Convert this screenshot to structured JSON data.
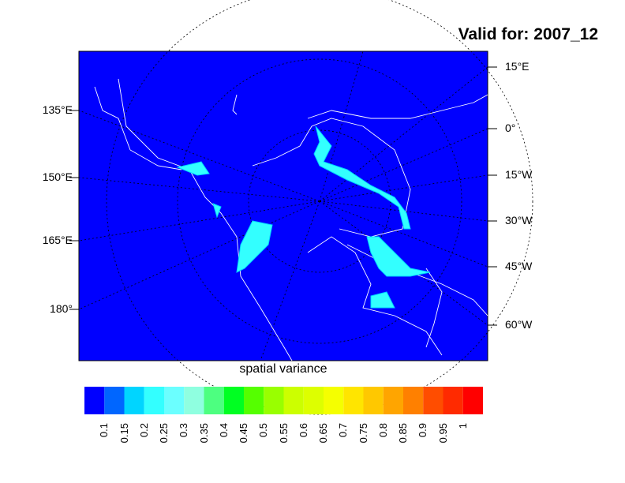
{
  "title": "Valid for: 2007_12",
  "variable_label": "spatial variance",
  "left_lon_labels": [
    "135°E",
    "150°E",
    "165°E",
    "180°"
  ],
  "right_lon_labels": [
    "15°E",
    "0°",
    "15°W",
    "30°W",
    "45°W",
    "60°W"
  ],
  "colorbar": {
    "labels": [
      "0.1",
      "0.15",
      "0.2",
      "0.25",
      "0.3",
      "0.35",
      "0.4",
      "0.45",
      "0.5",
      "0.55",
      "0.6",
      "0.65",
      "0.7",
      "0.75",
      "0.8",
      "0.85",
      "0.9",
      "0.95",
      "1"
    ],
    "colors": [
      "#0000ff",
      "#0066ff",
      "#00d5ff",
      "#33ffff",
      "#6bffff",
      "#8fffe0",
      "#4dff80",
      "#00ff22",
      "#55ff00",
      "#99ff00",
      "#ccff00",
      "#ddff00",
      "#f5ff00",
      "#ffe500",
      "#ffc800",
      "#ffa500",
      "#ff8000",
      "#ff4d00",
      "#ff2a00",
      "#ff0000"
    ]
  },
  "colors": {
    "ocean_background": "#0000ff",
    "coastline": "#ffffff",
    "high_variance": "#33ffff"
  }
}
